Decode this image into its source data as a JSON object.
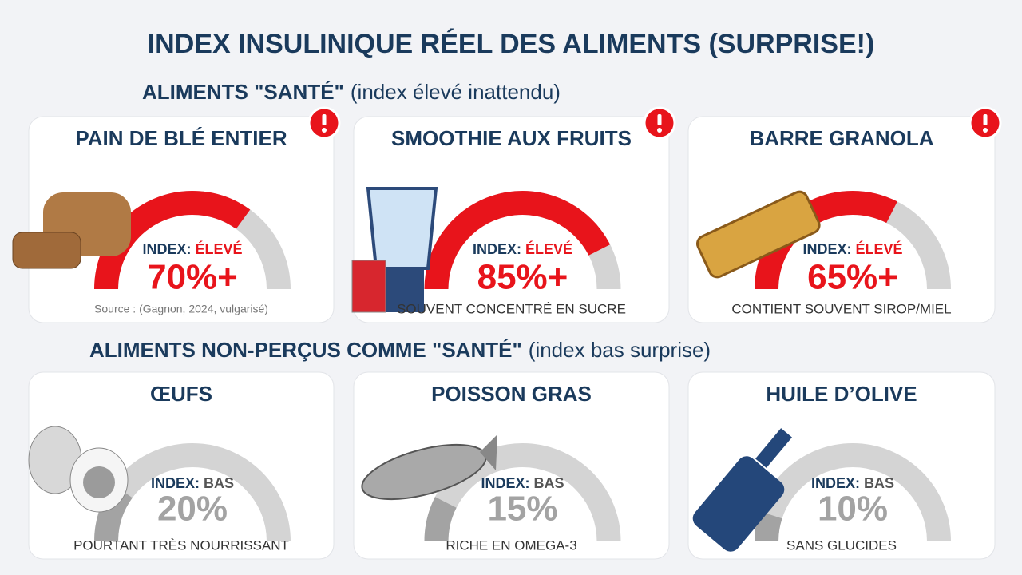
{
  "title": "INDEX INSULINIQUE RÉEL DES ALIMENTS (SURPRISE!)",
  "sections": [
    {
      "heading": "ALIMENTS \"SANTÉ\"",
      "subheading": "(index élevé inattendu)",
      "color": "#e8141b",
      "warning": true,
      "cards": [
        {
          "title": "PAIN DE BLÉ ENTIER",
          "index_label": "INDEX:",
          "level": "ÉLEVÉ",
          "value": 70,
          "value_label": "70%+",
          "note": "Source : (Gagnon, 2024, vulgarisé)"
        },
        {
          "title": "SMOOTHIE AUX FRUITS",
          "index_label": "INDEX:",
          "level": "ÉLEVÉ",
          "value": 85,
          "value_label": "85%+",
          "note": "SOUVENT CONCENTRÉ EN SUCRE"
        },
        {
          "title": "BARRE GRANOLA",
          "index_label": "INDEX:",
          "level": "ÉLEVÉ",
          "value": 65,
          "value_label": "65%+",
          "note": "CONTIENT SOUVENT SIROP/MIEL"
        }
      ]
    },
    {
      "heading": "ALIMENTS NON-PERÇUS COMME \"SANTÉ\"",
      "subheading": "(index bas surprise)",
      "color": "#a3a3a3",
      "warning": false,
      "cards": [
        {
          "title": "ŒUFS",
          "index_label": "INDEX:",
          "level": "BAS",
          "value": 20,
          "value_label": "20%",
          "note": "POURTANT TRÈS NOURRISSANT"
        },
        {
          "title": "POISSON GRAS",
          "index_label": "INDEX:",
          "level": "BAS",
          "value": 15,
          "value_label": "15%",
          "note": "RICHE EN OMEGA-3"
        },
        {
          "title": "HUILE D’OLIVE",
          "index_label": "INDEX:",
          "level": "BAS",
          "value": 10,
          "value_label": "10%",
          "note": "SANS GLUCIDES"
        }
      ]
    }
  ]
}
